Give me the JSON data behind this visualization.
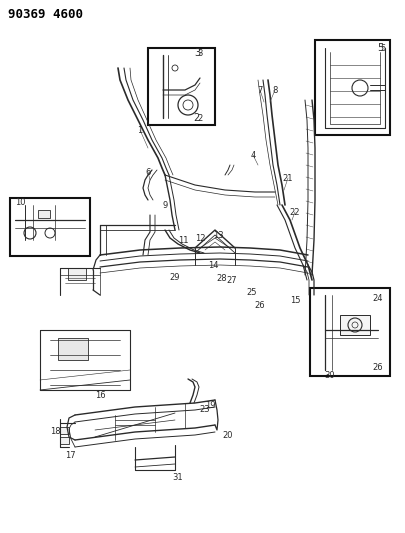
{
  "title": "90369 4600",
  "bg_color": "#ffffff",
  "fg_color": "#000000",
  "fig_width": 4.06,
  "fig_height": 5.33,
  "dpi": 100,
  "title_fontsize": 9,
  "title_fontweight": "bold",
  "lc": "#2a2a2a",
  "lc_light": "#555555"
}
